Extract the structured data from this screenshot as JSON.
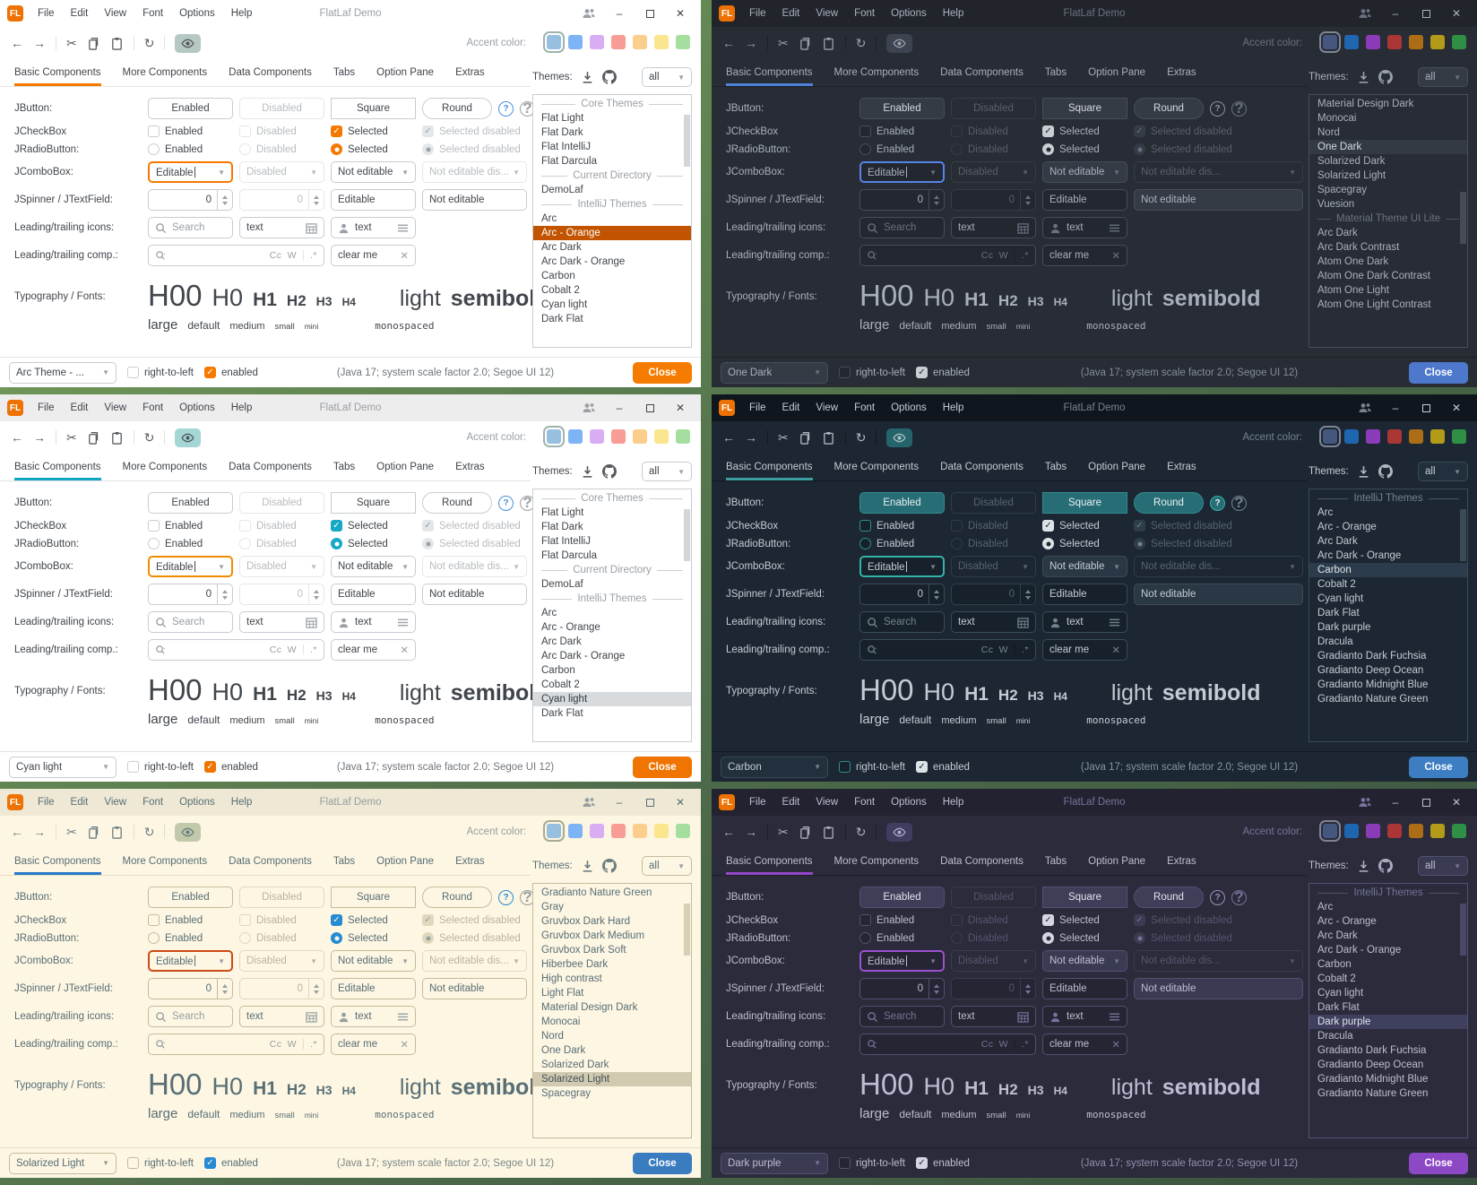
{
  "app": {
    "logo": "FL",
    "title": "FlatLaf Demo",
    "menu": [
      "File",
      "Edit",
      "View",
      "Font",
      "Options",
      "Help"
    ],
    "accent_label": "Accent color:",
    "tabs": [
      "Basic Components",
      "More Components",
      "Data Components",
      "Tabs",
      "Option Pane",
      "Extras"
    ],
    "themes_label": "Themes:",
    "filter_value": "all"
  },
  "content": {
    "jbutton": {
      "label": "JButton:",
      "enabled": "Enabled",
      "disabled": "Disabled",
      "square": "Square",
      "round": "Round"
    },
    "jcheckbox": {
      "label": "JCheckBox",
      "enabled": "Enabled",
      "disabled": "Disabled",
      "selected": "Selected",
      "selected_disabled": "Selected disabled"
    },
    "jradiobutton": {
      "label": "JRadioButton:",
      "enabled": "Enabled",
      "disabled": "Disabled",
      "selected": "Selected",
      "selected_disabled": "Selected disabled"
    },
    "jcombobox": {
      "label": "JComboBox:",
      "editable": "Editable",
      "disabled": "Disabled",
      "not_editable": "Not editable",
      "not_editable_disabled": "Not editable dis..."
    },
    "jspinner": {
      "label": "JSpinner / JTextField:",
      "value1": "0",
      "value2": "0",
      "editable": "Editable",
      "not_editable": "Not editable"
    },
    "leading_icons": {
      "label": "Leading/trailing icons:",
      "search_placeholder": "Search",
      "text_value": "text",
      "text_value2": "text"
    },
    "leading_comp": {
      "label": "Leading/trailing comp.:",
      "match_case": "Cc",
      "words": "W",
      "regex": ".*",
      "clear_text": "clear me"
    },
    "typography": {
      "label": "Typography / Fonts:",
      "h00": "H00",
      "h0": "H0",
      "h1": "H1",
      "h2": "H2",
      "h3": "H3",
      "h4": "H4",
      "light": "light",
      "semibold": "semibold",
      "large": "large",
      "default": "default",
      "medium": "medium",
      "small": "small",
      "mini": "mini",
      "monospaced": "monospaced"
    }
  },
  "bottom": {
    "rtl_label": "right-to-left",
    "enabled_label": "enabled",
    "status": "(Java 17;  system scale factor 2.0; Segoe UI 12)",
    "close_label": "Close"
  },
  "windows": [
    {
      "theme_name": "Arc - Orange",
      "mode": "light",
      "combo_value": "Arc Theme - ...",
      "selected_swatch": 0,
      "accent_swatches": [
        "#98bfdf",
        "#7db4f5",
        "#d9adf2",
        "#f89d96",
        "#fbce8d",
        "#fbe58d",
        "#a4df9f"
      ],
      "colors": {
        "bg": "#ffffff",
        "tbar": "#ffffff",
        "text": "#41464d",
        "muted": "#9aa0a6",
        "border": "#e2e4e6",
        "btnBg": "#ffffff",
        "btnBorder": "#c8cdd2",
        "btnText": "#41464d",
        "disText": "#b8bcc0",
        "disBorder": "#e4e7e9",
        "accent": "#f57900",
        "focus": "#f57900",
        "checkBg": "#f57900",
        "checkFg": "#ffffff",
        "selBg": "#c25400",
        "selText": "#ffffff",
        "closeBg": "#f57c00",
        "closeText": "#ffffff",
        "eyeBg": "#b6c8c3",
        "fieldBg": "#ffffff",
        "fieldBorder": "#c8cdd2",
        "listBg": "#ffffff",
        "help": "#4a90d9",
        "helpBg": "transparent",
        "helpFg": "#4a90d9",
        "status": "#70767c",
        "comboBg": "#ffffff",
        "swatchRing": "#9fb3ae",
        "scrollThumb": "#d4d7d9",
        "notEdBg": "#ffffff",
        "bottomCheck": "#f57900",
        "bottomCheckFg": "#ffffff"
      },
      "theme_list": [
        {
          "type": "sep",
          "label": "Core Themes"
        },
        {
          "type": "item",
          "label": "Flat Light"
        },
        {
          "type": "item",
          "label": "Flat Dark"
        },
        {
          "type": "item",
          "label": "Flat IntelliJ"
        },
        {
          "type": "item",
          "label": "Flat Darcula"
        },
        {
          "type": "sep",
          "label": "Current Directory"
        },
        {
          "type": "item",
          "label": "DemoLaf"
        },
        {
          "type": "sep",
          "label": "IntelliJ Themes"
        },
        {
          "type": "item",
          "label": "Arc"
        },
        {
          "type": "item",
          "label": "Arc - Orange",
          "selected": true
        },
        {
          "type": "item",
          "label": "Arc Dark"
        },
        {
          "type": "item",
          "label": "Arc Dark - Orange"
        },
        {
          "type": "item",
          "label": "Carbon"
        },
        {
          "type": "item",
          "label": "Cobalt 2"
        },
        {
          "type": "item",
          "label": "Cyan light"
        },
        {
          "type": "item",
          "label": "Dark Flat"
        }
      ]
    },
    {
      "theme_name": "One Dark",
      "mode": "dark",
      "combo_value": "One Dark",
      "selected_swatch": 0,
      "accent_swatches": [
        "#45577e",
        "#1f66b0",
        "#8a3cb8",
        "#aa3636",
        "#ad6d17",
        "#b19b18",
        "#2f8f45"
      ],
      "colors": {
        "bg": "#282c34",
        "tbar": "#21252b",
        "text": "#a8b0bd",
        "muted": "#697180",
        "border": "#1d2026",
        "btnBg": "#353b45",
        "btnBorder": "#464d5a",
        "btnText": "#d6dae1",
        "disText": "#595f6b",
        "disBorder": "#363c46",
        "accent": "#4d82d8",
        "focus": "#5684e8",
        "checkBg": "#c9cdd4",
        "checkFg": "#23272e",
        "selBg": "#343a44",
        "selText": "#d6dae1",
        "closeBg": "#4d78cc",
        "closeText": "#ffffff",
        "eyeBg": "#3d4450",
        "fieldBg": "#23272f",
        "fieldBorder": "#464d5a",
        "listBg": "#282c34",
        "help": "#8a93a3",
        "helpBg": "transparent",
        "helpFg": "#8a93a3",
        "status": "#848d9b",
        "comboBg": "#353b45",
        "swatchRing": "#7d8594",
        "scrollThumb": "#454c58",
        "notEdBg": "#353b45",
        "bottomCheck": "#c9cdd4",
        "bottomCheckFg": "#23272e"
      },
      "theme_list": [
        {
          "type": "item",
          "label": "Material Design Dark"
        },
        {
          "type": "item",
          "label": "Monocai"
        },
        {
          "type": "item",
          "label": "Nord"
        },
        {
          "type": "item",
          "label": "One Dark",
          "selected": true
        },
        {
          "type": "item",
          "label": "Solarized Dark"
        },
        {
          "type": "item",
          "label": "Solarized Light"
        },
        {
          "type": "item",
          "label": "Spacegray"
        },
        {
          "type": "item",
          "label": "Vuesion"
        },
        {
          "type": "sep",
          "label": "Material Theme UI Lite"
        },
        {
          "type": "item",
          "label": "Arc Dark"
        },
        {
          "type": "item",
          "label": "Arc Dark Contrast"
        },
        {
          "type": "item",
          "label": "Atom One Dark"
        },
        {
          "type": "item",
          "label": "Atom One Dark Contrast"
        },
        {
          "type": "item",
          "label": "Atom One Light"
        },
        {
          "type": "item",
          "label": "Atom One Light Contrast"
        }
      ]
    },
    {
      "theme_name": "Cyan light",
      "mode": "light",
      "combo_value": "Cyan light",
      "selected_swatch": 0,
      "accent_swatches": [
        "#98bfdf",
        "#7db4f5",
        "#d9adf2",
        "#f89d96",
        "#fbce8d",
        "#fbe58d",
        "#a4df9f"
      ],
      "colors": {
        "bg": "#ffffff",
        "tbar": "#ededee",
        "text": "#3f454b",
        "muted": "#9aa0a6",
        "border": "#e0e2e4",
        "btnBg": "#ffffff",
        "btnBorder": "#c8cdd2",
        "btnText": "#3f454b",
        "disText": "#b8bcc0",
        "disBorder": "#e4e7e9",
        "accent": "#0ea8c0",
        "focus": "#f08c00",
        "checkBg": "#16a9c4",
        "checkFg": "#ffffff",
        "selBg": "#d7dbde",
        "selText": "#33383d",
        "closeBg": "#ef7500",
        "closeText": "#ffffff",
        "eyeBg": "#a5d6d6",
        "fieldBg": "#ffffff",
        "fieldBorder": "#c8cdd2",
        "listBg": "#ffffff",
        "help": "#4a90d9",
        "helpBg": "transparent",
        "helpFg": "#4a90d9",
        "status": "#70767c",
        "comboBg": "#ffffff",
        "swatchRing": "#9fb3ae",
        "scrollThumb": "#d4d7d9",
        "notEdBg": "#ffffff",
        "bottomCheck": "#ef7500",
        "bottomCheckFg": "#ffffff"
      },
      "theme_list": [
        {
          "type": "sep",
          "label": "Core Themes"
        },
        {
          "type": "item",
          "label": "Flat Light"
        },
        {
          "type": "item",
          "label": "Flat Dark"
        },
        {
          "type": "item",
          "label": "Flat IntelliJ"
        },
        {
          "type": "item",
          "label": "Flat Darcula"
        },
        {
          "type": "sep",
          "label": "Current Directory"
        },
        {
          "type": "item",
          "label": "DemoLaf"
        },
        {
          "type": "sep",
          "label": "IntelliJ Themes"
        },
        {
          "type": "item",
          "label": "Arc"
        },
        {
          "type": "item",
          "label": "Arc - Orange"
        },
        {
          "type": "item",
          "label": "Arc Dark"
        },
        {
          "type": "item",
          "label": "Arc Dark - Orange"
        },
        {
          "type": "item",
          "label": "Carbon"
        },
        {
          "type": "item",
          "label": "Cobalt 2"
        },
        {
          "type": "item",
          "label": "Cyan light",
          "selected": true
        },
        {
          "type": "item",
          "label": "Dark Flat"
        }
      ]
    },
    {
      "theme_name": "Carbon",
      "mode": "dark",
      "combo_value": "Carbon",
      "selected_swatch": 0,
      "accent_swatches": [
        "#45577e",
        "#1f66b0",
        "#8a3cb8",
        "#aa3636",
        "#ad6d17",
        "#b19b18",
        "#2f8f45"
      ],
      "colors": {
        "bg": "#1c2733",
        "tbar": "#10161d",
        "text": "#c3ccd4",
        "muted": "#76838f",
        "border": "#121921",
        "btnBg": "#266d75",
        "btnBorder": "#2f8d90",
        "btnText": "#eaf2f3",
        "disText": "#56646f",
        "disBorder": "#2e3d4a",
        "accent": "#3b9fa1",
        "focus": "#34b3a8",
        "checkBg": "#dde4e8",
        "checkFg": "#1c2733",
        "selBg": "#2c3c4c",
        "selText": "#dde4e8",
        "closeBg": "#3d7ec2",
        "closeText": "#ffffff",
        "eyeBg": "#26646c",
        "fieldBg": "#16212c",
        "fieldBorder": "#3a4a58",
        "listBg": "#1c2733",
        "help": "#34b3a8",
        "helpBg": "#266d74",
        "helpFg": "#eaf2f3",
        "status": "#8595a3",
        "comboBg": "#22303d",
        "swatchRing": "#7d8594",
        "scrollThumb": "#3a4a58",
        "notEdBg": "#2a3845",
        "bottomCheck": "#dde4e8",
        "bottomCheckFg": "#1c2733"
      },
      "theme_list": [
        {
          "type": "sep",
          "label": "IntelliJ Themes"
        },
        {
          "type": "item",
          "label": "Arc"
        },
        {
          "type": "item",
          "label": "Arc - Orange"
        },
        {
          "type": "item",
          "label": "Arc Dark"
        },
        {
          "type": "item",
          "label": "Arc Dark - Orange"
        },
        {
          "type": "item",
          "label": "Carbon",
          "selected": true
        },
        {
          "type": "item",
          "label": "Cobalt 2"
        },
        {
          "type": "item",
          "label": "Cyan light"
        },
        {
          "type": "item",
          "label": "Dark Flat"
        },
        {
          "type": "item",
          "label": "Dark purple"
        },
        {
          "type": "item",
          "label": "Dracula"
        },
        {
          "type": "item",
          "label": "Gradianto Dark Fuchsia"
        },
        {
          "type": "item",
          "label": "Gradianto Deep Ocean"
        },
        {
          "type": "item",
          "label": "Gradianto Midnight Blue"
        },
        {
          "type": "item",
          "label": "Gradianto Nature Green"
        }
      ]
    },
    {
      "theme_name": "Solarized Light",
      "mode": "light",
      "combo_value": "Solarized Light",
      "selected_swatch": 0,
      "accent_swatches": [
        "#98bfdf",
        "#7db4f5",
        "#d9adf2",
        "#f89d96",
        "#fbce8d",
        "#fbe58d",
        "#a4df9f"
      ],
      "colors": {
        "bg": "#fdf6e3",
        "tbar": "#eee8d5",
        "text": "#586e75",
        "muted": "#96a0a0",
        "border": "#e4dcc3",
        "btnBg": "#fdf6e3",
        "btnBorder": "#c5bb9b",
        "btnText": "#586e75",
        "disText": "#bbb49c",
        "disBorder": "#e0d8bd",
        "accent": "#2878c8",
        "focus": "#cb4b16",
        "checkBg": "#268bd2",
        "checkFg": "#fdf6e3",
        "selBg": "#d1c9b0",
        "selText": "#40525a",
        "closeBg": "#3a7cc0",
        "closeText": "#ffffff",
        "eyeBg": "#c2c9ab",
        "fieldBg": "#fdf6e3",
        "fieldBorder": "#c5bb9b",
        "listBg": "#fdf6e3",
        "help": "#268bd2",
        "helpBg": "transparent",
        "helpFg": "#268bd2",
        "status": "#7d8a8a",
        "comboBg": "#fdf6e3",
        "swatchRing": "#a8ab91",
        "scrollThumb": "#d8d0b6",
        "notEdBg": "#fdf6e3",
        "bottomCheck": "#268bd2",
        "bottomCheckFg": "#fdf6e3"
      },
      "theme_list": [
        {
          "type": "item",
          "label": "Gradianto Nature Green"
        },
        {
          "type": "item",
          "label": "Gray"
        },
        {
          "type": "item",
          "label": "Gruvbox Dark Hard"
        },
        {
          "type": "item",
          "label": "Gruvbox Dark Medium"
        },
        {
          "type": "item",
          "label": "Gruvbox Dark Soft"
        },
        {
          "type": "item",
          "label": "Hiberbee Dark"
        },
        {
          "type": "item",
          "label": "High contrast"
        },
        {
          "type": "item",
          "label": "Light Flat"
        },
        {
          "type": "item",
          "label": "Material Design Dark"
        },
        {
          "type": "item",
          "label": "Monocai"
        },
        {
          "type": "item",
          "label": "Nord"
        },
        {
          "type": "item",
          "label": "One Dark"
        },
        {
          "type": "item",
          "label": "Solarized Dark"
        },
        {
          "type": "item",
          "label": "Solarized Light",
          "selected": true
        },
        {
          "type": "item",
          "label": "Spacegray"
        }
      ]
    },
    {
      "theme_name": "Dark purple",
      "mode": "dark",
      "combo_value": "Dark purple",
      "selected_swatch": 0,
      "accent_swatches": [
        "#45577e",
        "#1f66b0",
        "#8a3cb8",
        "#aa3636",
        "#ad6d17",
        "#b19b18",
        "#2f8f45"
      ],
      "colors": {
        "bg": "#2b2b3b",
        "tbar": "#232230",
        "text": "#bdbed4",
        "muted": "#73759a",
        "border": "#1d1d29",
        "btnBg": "#3e3e58",
        "btnBorder": "#515174",
        "btnText": "#e3e3f0",
        "disText": "#55566f",
        "disBorder": "#3b3b52",
        "accent": "#9447c9",
        "focus": "#9a52d0",
        "checkBg": "#d5d6e4",
        "checkFg": "#2b2b3b",
        "selBg": "#3f3f5e",
        "selText": "#e3e3f0",
        "closeBg": "#8d49c5",
        "closeText": "#ffffff",
        "eyeBg": "#413d60",
        "fieldBg": "#252533",
        "fieldBorder": "#515174",
        "listBg": "#2b2b3b",
        "help": "#9a8fb8",
        "helpBg": "transparent",
        "helpFg": "#9a8fb8",
        "status": "#8f91b0",
        "comboBg": "#3a3a52",
        "swatchRing": "#7d8594",
        "scrollThumb": "#4a4a68",
        "notEdBg": "#3a3a52",
        "bottomCheck": "#d5d6e4",
        "bottomCheckFg": "#2b2b3b"
      },
      "theme_list": [
        {
          "type": "sep",
          "label": "IntelliJ Themes"
        },
        {
          "type": "item",
          "label": "Arc"
        },
        {
          "type": "item",
          "label": "Arc - Orange"
        },
        {
          "type": "item",
          "label": "Arc Dark"
        },
        {
          "type": "item",
          "label": "Arc Dark - Orange"
        },
        {
          "type": "item",
          "label": "Carbon"
        },
        {
          "type": "item",
          "label": "Cobalt 2"
        },
        {
          "type": "item",
          "label": "Cyan light"
        },
        {
          "type": "item",
          "label": "Dark Flat"
        },
        {
          "type": "item",
          "label": "Dark purple",
          "selected": true
        },
        {
          "type": "item",
          "label": "Dracula"
        },
        {
          "type": "item",
          "label": "Gradianto Dark Fuchsia"
        },
        {
          "type": "item",
          "label": "Gradianto Deep Ocean"
        },
        {
          "type": "item",
          "label": "Gradianto Midnight Blue"
        },
        {
          "type": "item",
          "label": "Gradianto Nature Green"
        }
      ]
    }
  ]
}
